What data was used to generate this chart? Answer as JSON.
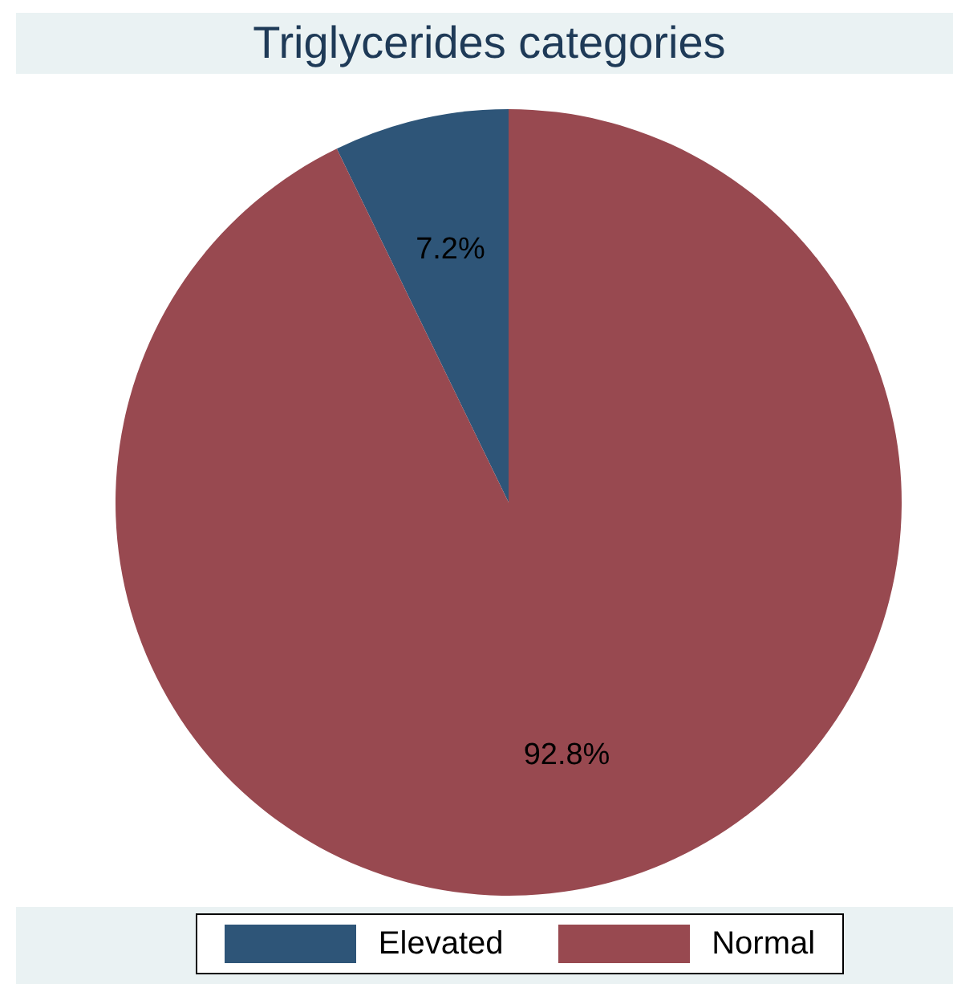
{
  "chart_data": {
    "type": "pie",
    "title": "Triglycerides categories",
    "categories": [
      "Elevated",
      "Normal"
    ],
    "values": [
      7.2,
      92.8
    ],
    "colors": [
      "#2e5578",
      "#984950"
    ],
    "value_labels": [
      "7.2%",
      "92.8%"
    ],
    "legend": "bottom"
  }
}
